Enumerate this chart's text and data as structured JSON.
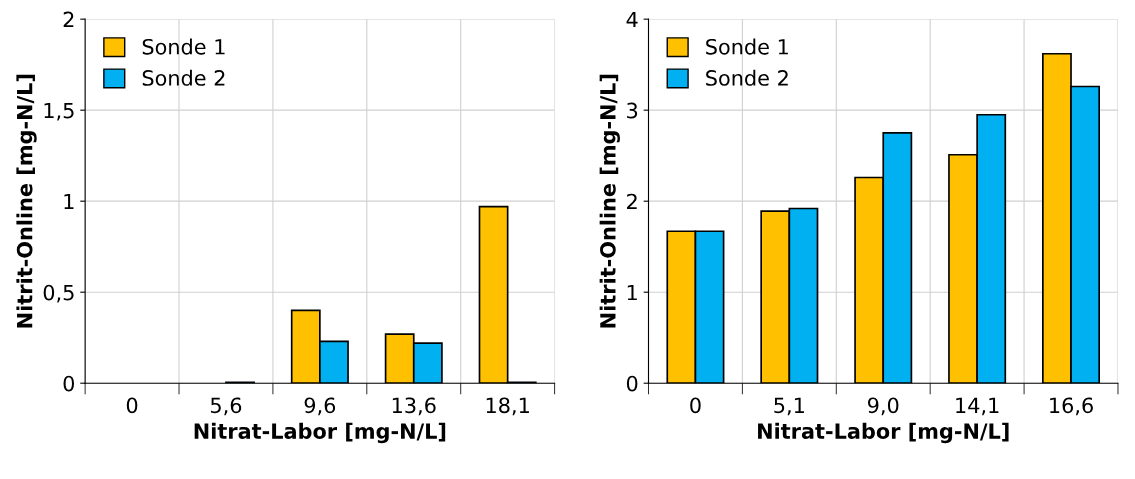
{
  "chart_data": [
    {
      "type": "bar",
      "categories": [
        "0",
        "5,6",
        "9,6",
        "13,6",
        "18,1"
      ],
      "xlabel": "Nitrat-Labor [mg-N/L]",
      "ylabel": "Nitrit-Online [mg-N/L]",
      "series": [
        {
          "name": "Sonde 1",
          "color": "#ffc000",
          "values": [
            null,
            null,
            0.4,
            0.27,
            0.97
          ]
        },
        {
          "name": "Sonde 2",
          "color": "#00b0f0",
          "values": [
            null,
            0.005,
            0.23,
            0.22,
            0.005
          ]
        }
      ],
      "ylim": [
        0,
        2
      ],
      "yticks": [
        0,
        {
          "value": 0.5,
          "label": "0,5"
        },
        1,
        {
          "value": 1.5,
          "label": "1,5"
        },
        2
      ],
      "grid": true,
      "legend": "top left"
    },
    {
      "type": "bar",
      "categories": [
        "0",
        "5,1",
        "9,0",
        "14,1",
        "16,6"
      ],
      "xlabel": "Nitrat-Labor [mg-N/L]",
      "ylabel": "Nitrit-Online [mg-N/L]",
      "series": [
        {
          "name": "Sonde 1",
          "color": "#ffc000",
          "values": [
            1.67,
            1.89,
            2.26,
            2.51,
            3.62
          ]
        },
        {
          "name": "Sonde 2",
          "color": "#00b0f0",
          "values": [
            1.67,
            1.92,
            2.75,
            2.95,
            3.26
          ]
        }
      ],
      "ylim": [
        0,
        4
      ],
      "yticks": [
        0,
        1,
        2,
        3,
        4
      ],
      "grid": true,
      "legend": "top left"
    }
  ]
}
